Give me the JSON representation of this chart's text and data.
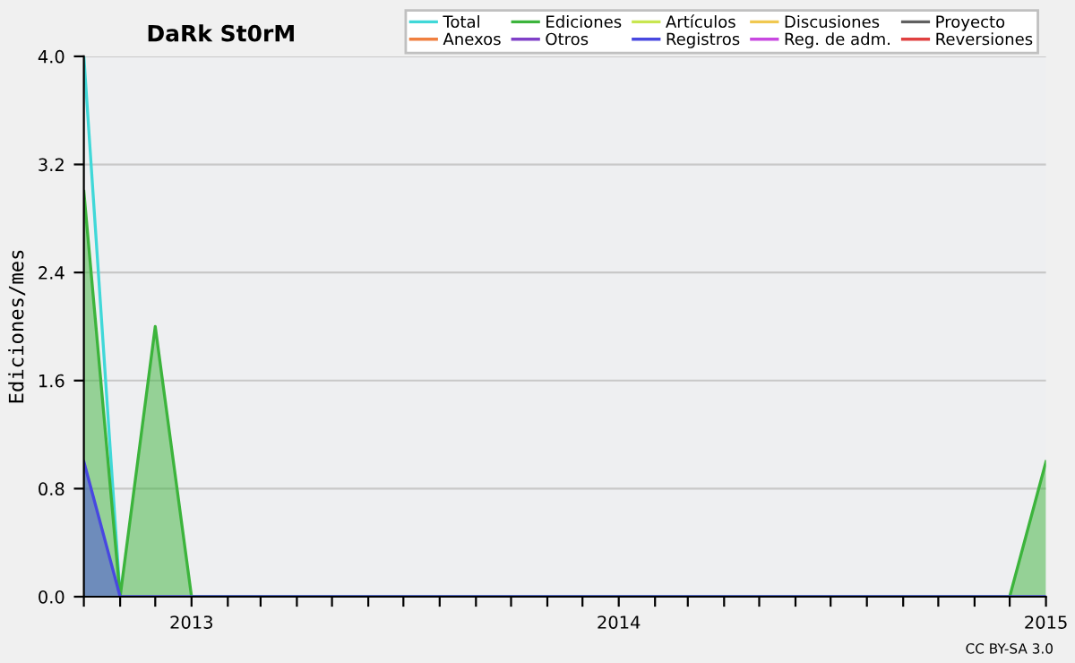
{
  "chart_data": {
    "type": "line",
    "title": "DaRk St0rM",
    "ylabel": "Ediciones/mes",
    "annotations": [
      "CC BY-SA 3.0"
    ],
    "x": [
      "2012-10",
      "2012-11",
      "2012-12",
      "2013-01",
      "2013-02",
      "2013-03",
      "2013-04",
      "2013-05",
      "2013-06",
      "2013-07",
      "2013-08",
      "2013-09",
      "2013-10",
      "2013-11",
      "2013-12",
      "2014-01",
      "2014-02",
      "2014-03",
      "2014-04",
      "2014-05",
      "2014-06",
      "2014-07",
      "2014-08",
      "2014-09",
      "2014-10",
      "2014-11",
      "2014-12",
      "2015-01"
    ],
    "series": [
      {
        "name": "Total",
        "color": "#40d8d8",
        "values": [
          4,
          0,
          null,
          null,
          null,
          null,
          null,
          null,
          null,
          null,
          null,
          null,
          null,
          null,
          null,
          null,
          null,
          null,
          null,
          null,
          null,
          null,
          null,
          null,
          null,
          null,
          null,
          null
        ]
      },
      {
        "name": "Ediciones",
        "type": "area",
        "color": "#3cb43c",
        "values": [
          3,
          0,
          2,
          0,
          0,
          0,
          0,
          0,
          0,
          0,
          0,
          0,
          0,
          0,
          0,
          0,
          0,
          0,
          0,
          0,
          0,
          0,
          0,
          0,
          0,
          0,
          0,
          1
        ]
      },
      {
        "name": "Artículos",
        "type": "line",
        "color": "#c8e650",
        "values": [
          null,
          null,
          null,
          null,
          null,
          null,
          null,
          null,
          null,
          null,
          null,
          null,
          null,
          null,
          null,
          null,
          null,
          null,
          null,
          null,
          null,
          null,
          null,
          null,
          null,
          null,
          null,
          null
        ]
      },
      {
        "name": "Discusiones",
        "type": "line",
        "color": "#f0c850",
        "values": [
          null,
          null,
          null,
          null,
          null,
          null,
          null,
          null,
          null,
          null,
          null,
          null,
          null,
          null,
          null,
          null,
          null,
          null,
          null,
          null,
          null,
          null,
          null,
          null,
          null,
          null,
          null,
          null
        ]
      },
      {
        "name": "Proyecto",
        "type": "line",
        "color": "#606060",
        "values": [
          null,
          null,
          null,
          null,
          null,
          null,
          null,
          null,
          null,
          null,
          null,
          null,
          null,
          null,
          null,
          null,
          null,
          null,
          null,
          null,
          null,
          null,
          null,
          null,
          null,
          null,
          null,
          null
        ]
      },
      {
        "name": "Anexos",
        "type": "line",
        "color": "#f08040",
        "values": [
          null,
          null,
          null,
          null,
          null,
          null,
          null,
          null,
          null,
          null,
          null,
          null,
          null,
          null,
          null,
          null,
          null,
          null,
          null,
          null,
          null,
          null,
          null,
          null,
          null,
          null,
          null,
          null
        ]
      },
      {
        "name": "Otros",
        "type": "line",
        "color": "#8040c8",
        "values": [
          null,
          null,
          null,
          null,
          null,
          null,
          null,
          null,
          null,
          null,
          null,
          null,
          null,
          null,
          null,
          null,
          null,
          null,
          null,
          null,
          null,
          null,
          null,
          null,
          null,
          null,
          null,
          null
        ]
      },
      {
        "name": "Registros",
        "type": "area",
        "color": "#4848e0",
        "values": [
          1,
          0,
          0,
          0,
          0,
          0,
          0,
          0,
          0,
          0,
          0,
          0,
          0,
          0,
          0,
          0,
          0,
          0,
          0,
          0,
          0,
          0,
          0,
          0,
          0,
          0,
          0,
          0
        ]
      },
      {
        "name": "Reg. de adm.",
        "type": "line",
        "color": "#c848e0",
        "values": [
          null,
          null,
          null,
          null,
          null,
          null,
          null,
          null,
          null,
          null,
          null,
          null,
          null,
          null,
          null,
          null,
          null,
          null,
          null,
          null,
          null,
          null,
          null,
          null,
          null,
          null,
          null,
          null
        ]
      },
      {
        "name": "Reversiones",
        "type": "line",
        "color": "#e04040",
        "values": [
          null,
          null,
          null,
          null,
          null,
          null,
          null,
          null,
          null,
          null,
          null,
          null,
          null,
          null,
          null,
          null,
          null,
          null,
          null,
          null,
          null,
          null,
          null,
          null,
          null,
          null,
          null,
          null
        ]
      }
    ],
    "xlim": [
      "2012-10",
      "2015-01"
    ],
    "xticks": [
      {
        "value": "2012-10",
        "label": null
      },
      {
        "value": "2012-11",
        "label": null
      },
      {
        "value": "2012-12",
        "label": null
      },
      {
        "value": "2013-01",
        "label": "2013"
      },
      {
        "value": "2013-02",
        "label": null
      },
      {
        "value": "2013-03",
        "label": null
      },
      {
        "value": "2013-04",
        "label": null
      },
      {
        "value": "2013-05",
        "label": null
      },
      {
        "value": "2013-06",
        "label": null
      },
      {
        "value": "2013-07",
        "label": null
      },
      {
        "value": "2013-08",
        "label": null
      },
      {
        "value": "2013-09",
        "label": null
      },
      {
        "value": "2013-10",
        "label": null
      },
      {
        "value": "2013-11",
        "label": null
      },
      {
        "value": "2013-12",
        "label": null
      },
      {
        "value": "2014-01",
        "label": "2014"
      },
      {
        "value": "2014-02",
        "label": null
      },
      {
        "value": "2014-03",
        "label": null
      },
      {
        "value": "2014-04",
        "label": null
      },
      {
        "value": "2014-05",
        "label": null
      },
      {
        "value": "2014-06",
        "label": null
      },
      {
        "value": "2014-07",
        "label": null
      },
      {
        "value": "2014-08",
        "label": null
      },
      {
        "value": "2014-09",
        "label": null
      },
      {
        "value": "2014-10",
        "label": null
      },
      {
        "value": "2014-11",
        "label": null
      },
      {
        "value": "2014-12",
        "label": null
      },
      {
        "value": "2015-01",
        "label": "2015"
      }
    ],
    "ylim": [
      0,
      4
    ],
    "yticks": [
      {
        "value": 0,
        "label": "0.0"
      },
      {
        "value": 0.8,
        "label": "0.8"
      },
      {
        "value": 1.6,
        "label": "1.6"
      },
      {
        "value": 2.4,
        "label": "2.4"
      },
      {
        "value": 3.2,
        "label": "3.2"
      },
      {
        "value": 4,
        "label": "4.0"
      }
    ],
    "grid": "y",
    "legend": "top right"
  }
}
